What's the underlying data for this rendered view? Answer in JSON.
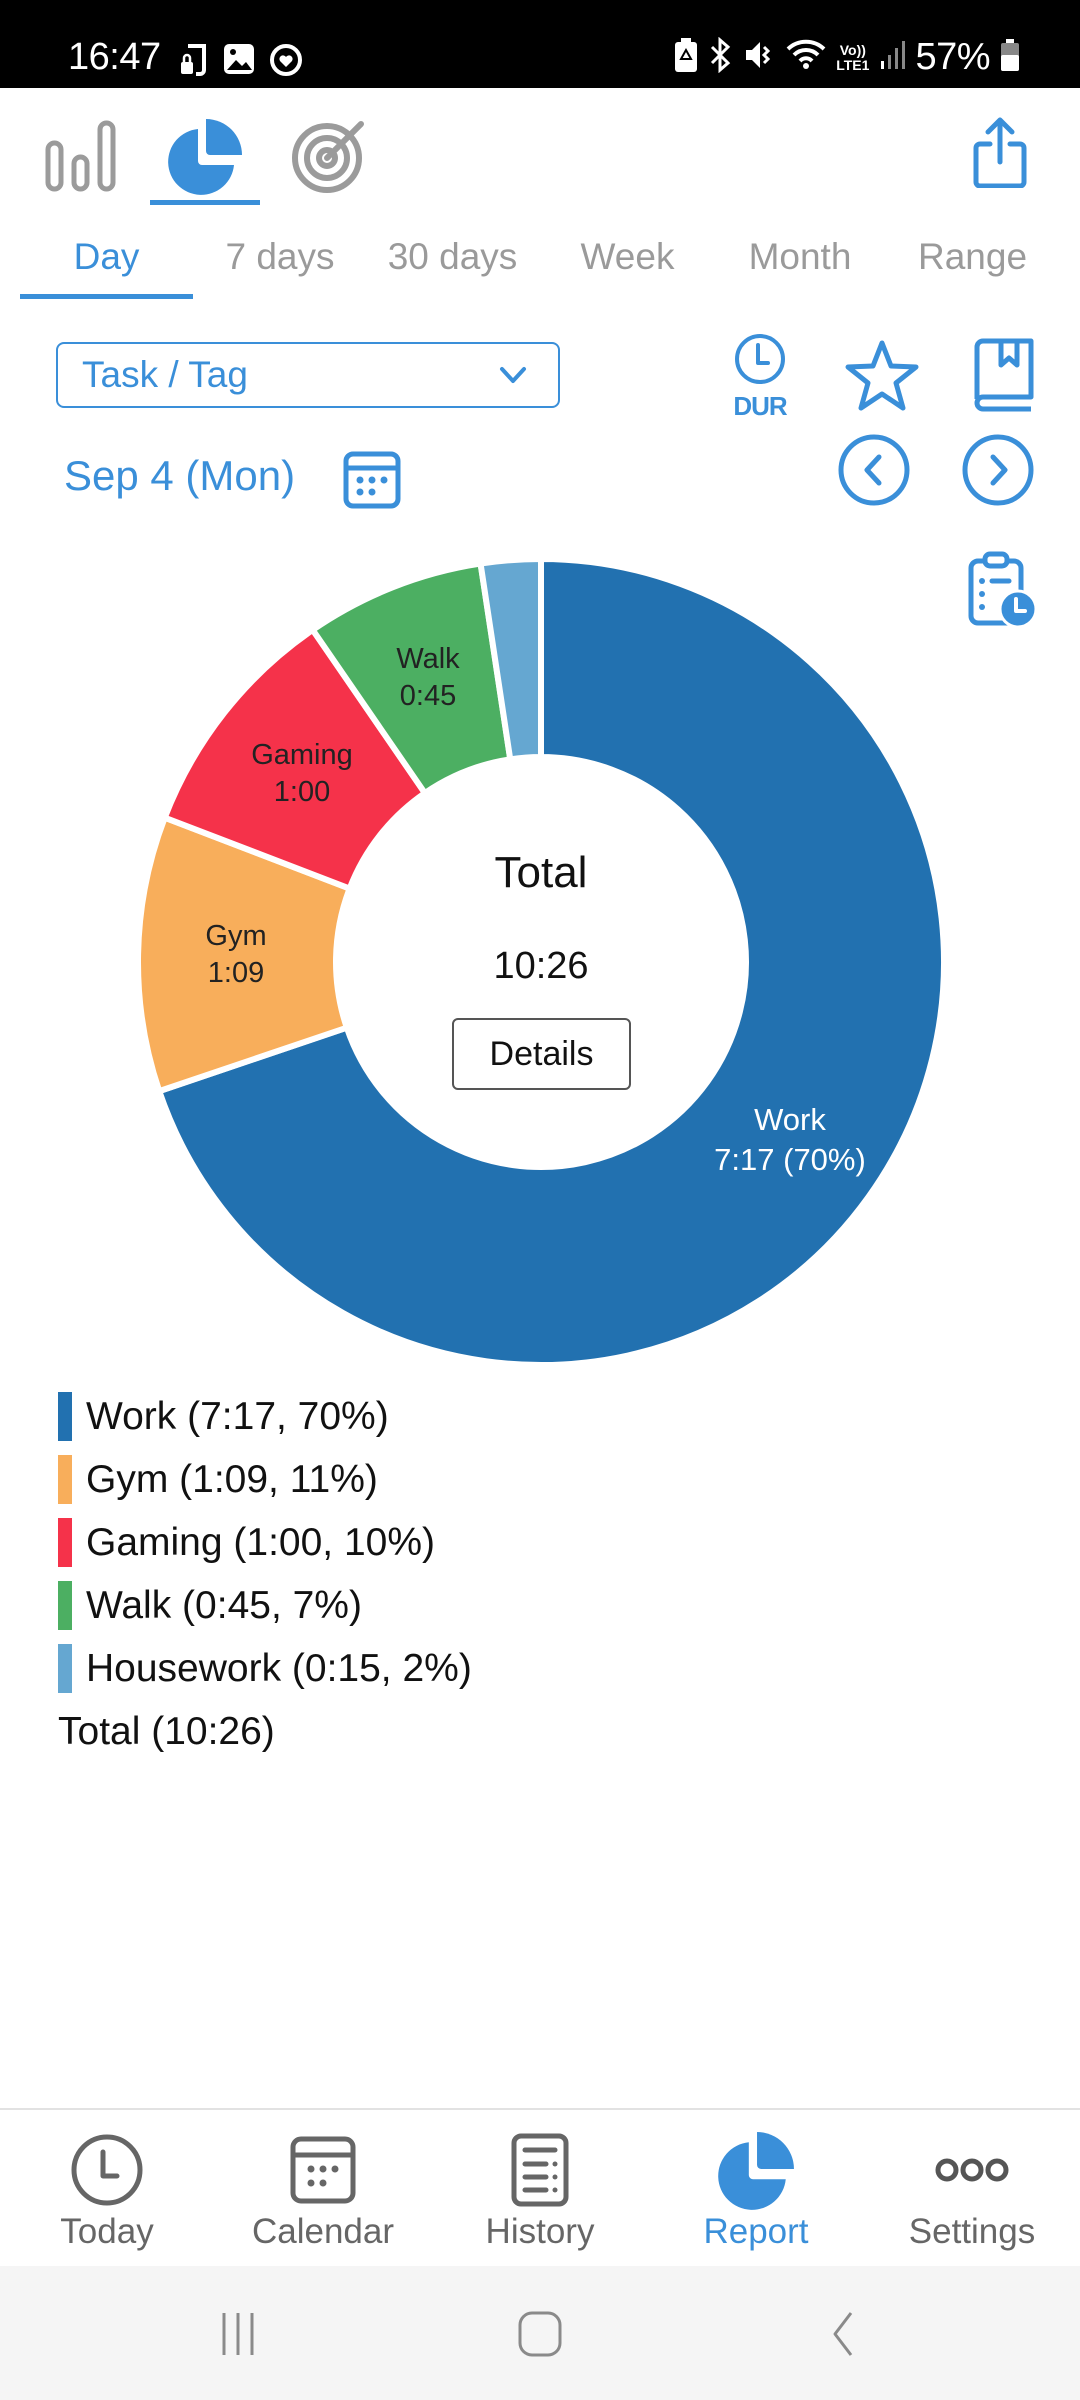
{
  "status_bar": {
    "time": "16:47",
    "left_icons": [
      "music-lock-icon",
      "gallery-icon",
      "heart-circle-icon"
    ],
    "right_icons": [
      "battery-saver-icon",
      "bluetooth-icon",
      "mute-icon",
      "wifi-icon",
      "volte-lte1-icon",
      "signal-icon"
    ],
    "volte_text_top": "Vo))",
    "volte_text_bottom": "LTE1",
    "battery_percent": "57%"
  },
  "chart_type_tabs": [
    {
      "name": "bar-chart",
      "icon": "bar-chart-icon",
      "active": false
    },
    {
      "name": "pie-chart",
      "icon": "pie-chart-icon",
      "active": true
    },
    {
      "name": "goal",
      "icon": "target-icon",
      "active": false
    }
  ],
  "share_icon": "share-icon",
  "period_tabs": [
    {
      "label": "Day",
      "active": true
    },
    {
      "label": "7 days",
      "active": false
    },
    {
      "label": "30 days",
      "active": false
    },
    {
      "label": "Week",
      "active": false
    },
    {
      "label": "Month",
      "active": false
    },
    {
      "label": "Range",
      "active": false
    }
  ],
  "controls": {
    "group_by_value": "Task / Tag",
    "duration_toggle_label": "DUR",
    "date_label": "Sep 4 (Mon)"
  },
  "center": {
    "title": "Total",
    "value": "10:26",
    "details_label": "Details"
  },
  "colors": {
    "accent": "#3a8fd9",
    "work": "#2271b0",
    "gym": "#f8ae5b",
    "gaming": "#f5324a",
    "walk": "#4caf62",
    "housework": "#65a7d1"
  },
  "slice_labels": {
    "work": {
      "line1": "Work",
      "line2": "7:17 (70%)"
    },
    "gym": {
      "line1": "Gym",
      "line2": "1:09"
    },
    "gaming": {
      "line1": "Gaming",
      "line2": "1:00"
    },
    "walk": {
      "line1": "Walk",
      "line2": "0:45"
    }
  },
  "legend": {
    "items": [
      {
        "label": "Work (7:17, 70%)",
        "color": "#2271b0"
      },
      {
        "label": "Gym (1:09, 11%)",
        "color": "#f8ae5b"
      },
      {
        "label": "Gaming (1:00, 10%)",
        "color": "#f5324a"
      },
      {
        "label": "Walk (0:45, 7%)",
        "color": "#4caf62"
      },
      {
        "label": "Housework (0:15, 2%)",
        "color": "#65a7d1"
      }
    ],
    "total": "Total (10:26)"
  },
  "chart_data": {
    "type": "pie",
    "subtype": "donut",
    "title": "Total",
    "center_value": "10:26",
    "categories": [
      "Work",
      "Gym",
      "Gaming",
      "Walk",
      "Housework"
    ],
    "durations": [
      "7:17",
      "1:09",
      "1:00",
      "0:45",
      "0:15"
    ],
    "values_minutes": [
      437,
      69,
      60,
      45,
      15
    ],
    "percent_labels": [
      70,
      11,
      10,
      7,
      2
    ],
    "colors": [
      "#2271b0",
      "#f8ae5b",
      "#f5324a",
      "#4caf62",
      "#65a7d1"
    ],
    "total_minutes": 626,
    "total_label": "10:26",
    "start_angle": "top (12 o'clock), clockwise",
    "legend_position": "bottom"
  },
  "bottom_nav": [
    {
      "label": "Today",
      "icon": "clock-icon",
      "active": false
    },
    {
      "label": "Calendar",
      "icon": "calendar-icon",
      "active": false
    },
    {
      "label": "History",
      "icon": "history-list-icon",
      "active": false
    },
    {
      "label": "Report",
      "icon": "pie-chart-icon",
      "active": true
    },
    {
      "label": "Settings",
      "icon": "more-dots-icon",
      "active": false
    }
  ],
  "system_nav": [
    "recents-icon",
    "home-icon",
    "back-icon"
  ]
}
